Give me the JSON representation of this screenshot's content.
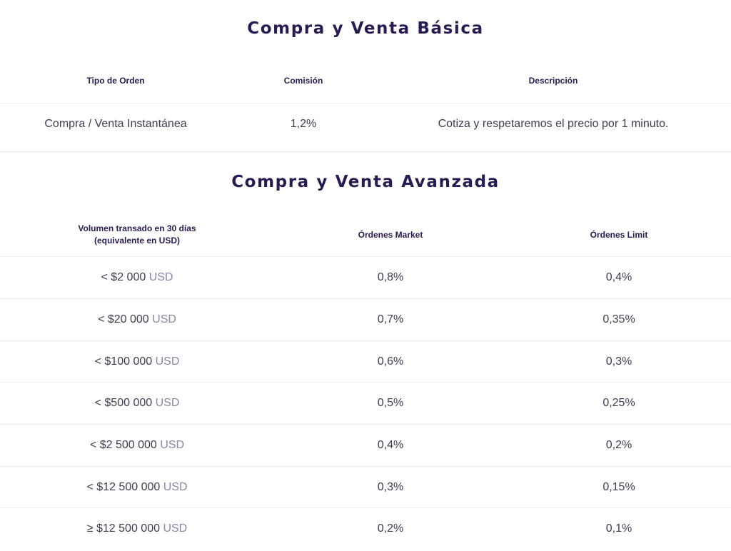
{
  "basic": {
    "title": "Compra y Venta Básica",
    "headers": [
      "Tipo de Orden",
      "Comisión",
      "Descripción"
    ],
    "rows": [
      {
        "type": "Compra / Venta Instantánea",
        "fee": "1,2%",
        "description": "Cotiza y respetaremos el precio por 1 minuto."
      }
    ]
  },
  "advanced": {
    "title": "Compra y Venta Avanzada",
    "headers": {
      "volume_line1": "Volumen transado en 30 días",
      "volume_line2": "(equivalente en USD)",
      "market": "Órdenes Market",
      "limit": "Órdenes Limit"
    },
    "currency": "USD",
    "rows": [
      {
        "volume": "< $2 000",
        "market": "0,8%",
        "limit": "0,4%"
      },
      {
        "volume": "< $20 000",
        "market": "0,7%",
        "limit": "0,35%"
      },
      {
        "volume": "< $100 000",
        "market": "0,6%",
        "limit": "0,3%"
      },
      {
        "volume": "< $500 000",
        "market": "0,5%",
        "limit": "0,25%"
      },
      {
        "volume": "< $2 500 000",
        "market": "0,4%",
        "limit": "0,2%"
      },
      {
        "volume": "< $12 500 000",
        "market": "0,3%",
        "limit": "0,15%"
      },
      {
        "volume": "≥ $12 500 000",
        "market": "0,2%",
        "limit": "0,1%"
      }
    ]
  },
  "colors": {
    "title": "#2a1a52",
    "text": "#3d3d4e",
    "muted": "#8a87a6",
    "divider": "#eeeef2"
  }
}
